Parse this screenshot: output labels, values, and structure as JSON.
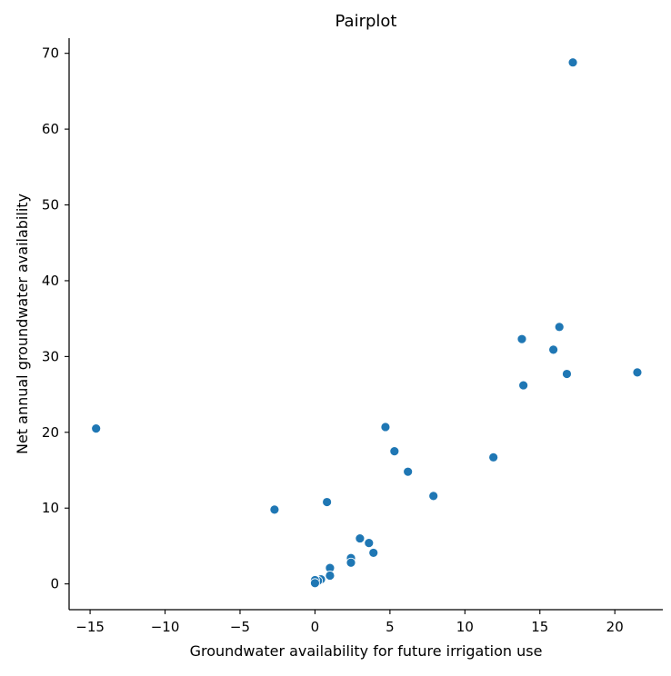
{
  "chart_data": {
    "type": "scatter",
    "title": "Pairplot",
    "xlabel": "Groundwater availability for future irrigation use",
    "ylabel": "Net annual groundwater availability",
    "xlim": [
      -16.4,
      23.2
    ],
    "ylim": [
      -3.4,
      72.0
    ],
    "x_ticks": [
      -15,
      -10,
      -5,
      0,
      5,
      10,
      15,
      20
    ],
    "x_tick_labels": [
      "−15",
      "−10",
      "−5",
      "0",
      "5",
      "10",
      "15",
      "20"
    ],
    "y_ticks": [
      0,
      10,
      20,
      30,
      40,
      50,
      60,
      70
    ],
    "y_tick_labels": [
      "0",
      "10",
      "20",
      "30",
      "40",
      "50",
      "60",
      "70"
    ],
    "grid": false,
    "marker_color": "#1f77b4",
    "series": [
      {
        "name": "data",
        "points": [
          {
            "x": -14.6,
            "y": 20.5
          },
          {
            "x": -2.7,
            "y": 9.8
          },
          {
            "x": 0.8,
            "y": 10.8
          },
          {
            "x": 4.7,
            "y": 20.7
          },
          {
            "x": 5.3,
            "y": 17.5
          },
          {
            "x": 6.2,
            "y": 14.8
          },
          {
            "x": 7.9,
            "y": 11.6
          },
          {
            "x": 11.9,
            "y": 16.7
          },
          {
            "x": 13.8,
            "y": 32.3
          },
          {
            "x": 13.9,
            "y": 26.2
          },
          {
            "x": 15.9,
            "y": 30.9
          },
          {
            "x": 16.3,
            "y": 33.9
          },
          {
            "x": 16.8,
            "y": 27.7
          },
          {
            "x": 17.2,
            "y": 68.8
          },
          {
            "x": 21.5,
            "y": 27.9
          },
          {
            "x": 3.0,
            "y": 6.0
          },
          {
            "x": 3.6,
            "y": 5.4
          },
          {
            "x": 3.9,
            "y": 4.1
          },
          {
            "x": 2.4,
            "y": 3.4
          },
          {
            "x": 2.4,
            "y": 2.8
          },
          {
            "x": 1.0,
            "y": 2.1
          },
          {
            "x": 1.0,
            "y": 1.1
          },
          {
            "x": 0.4,
            "y": 0.6
          },
          {
            "x": 0.2,
            "y": 0.4
          },
          {
            "x": 0.0,
            "y": 0.5
          },
          {
            "x": 0.0,
            "y": 0.1
          }
        ]
      }
    ]
  }
}
